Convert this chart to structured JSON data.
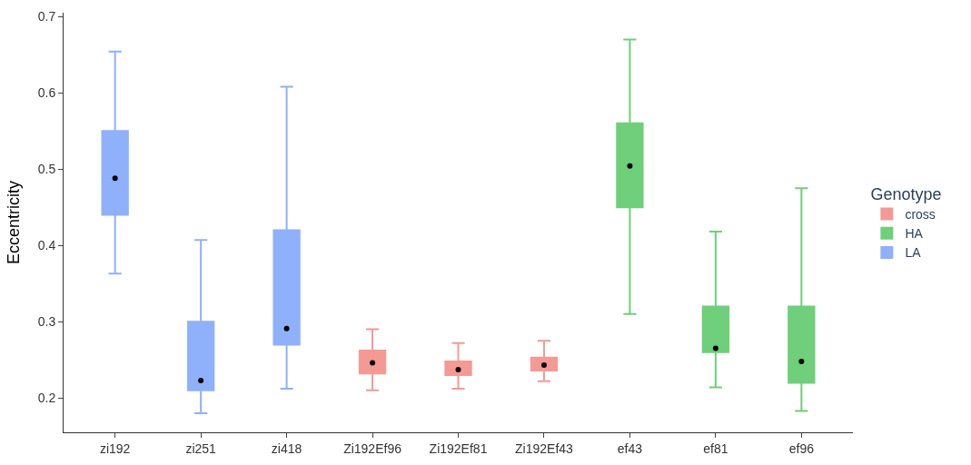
{
  "chart_data": {
    "type": "box",
    "ylabel": "Eccentricity",
    "legend_title": "Genotype",
    "legend": "right",
    "categories": [
      "zi192",
      "zi251",
      "zi418",
      "Zi192Ef96",
      "Zi192Ef81",
      "Zi192Ef43",
      "ef43",
      "ef81",
      "ef96"
    ],
    "ylim": [
      0.155,
      0.705
    ],
    "yticks": [
      0.2,
      0.3,
      0.4,
      0.5,
      0.6,
      0.7
    ],
    "series": [
      {
        "name": "cross",
        "color": "#f49a95",
        "boxes": [
          null,
          null,
          null,
          {
            "low": 0.21,
            "q1": 0.232,
            "median": 0.246,
            "q3": 0.262,
            "high": 0.29
          },
          {
            "low": 0.212,
            "q1": 0.23,
            "median": 0.237,
            "q3": 0.248,
            "high": 0.272
          },
          {
            "low": 0.222,
            "q1": 0.236,
            "median": 0.243,
            "q3": 0.253,
            "high": 0.275
          },
          null,
          null,
          null
        ]
      },
      {
        "name": "HA",
        "color": "#6fcf7a",
        "boxes": [
          null,
          null,
          null,
          null,
          null,
          null,
          {
            "low": 0.31,
            "q1": 0.45,
            "median": 0.504,
            "q3": 0.56,
            "high": 0.67
          },
          {
            "low": 0.214,
            "q1": 0.26,
            "median": 0.265,
            "q3": 0.32,
            "high": 0.418
          },
          {
            "low": 0.183,
            "q1": 0.22,
            "median": 0.248,
            "q3": 0.32,
            "high": 0.475
          }
        ]
      },
      {
        "name": "LA",
        "color": "#8fb0fb",
        "boxes": [
          {
            "low": 0.363,
            "q1": 0.44,
            "median": 0.488,
            "q3": 0.55,
            "high": 0.654
          },
          {
            "low": 0.18,
            "q1": 0.21,
            "median": 0.223,
            "q3": 0.3,
            "high": 0.407
          },
          {
            "low": 0.212,
            "q1": 0.27,
            "median": 0.291,
            "q3": 0.42,
            "high": 0.608
          },
          null,
          null,
          null,
          null,
          null,
          null
        ]
      },
      {
        "type": "scatter",
        "color": "#000000",
        "marker": "circle",
        "values": [
          0.488,
          0.223,
          0.291,
          0.246,
          0.237,
          0.243,
          0.504,
          0.265,
          0.248
        ]
      }
    ]
  }
}
